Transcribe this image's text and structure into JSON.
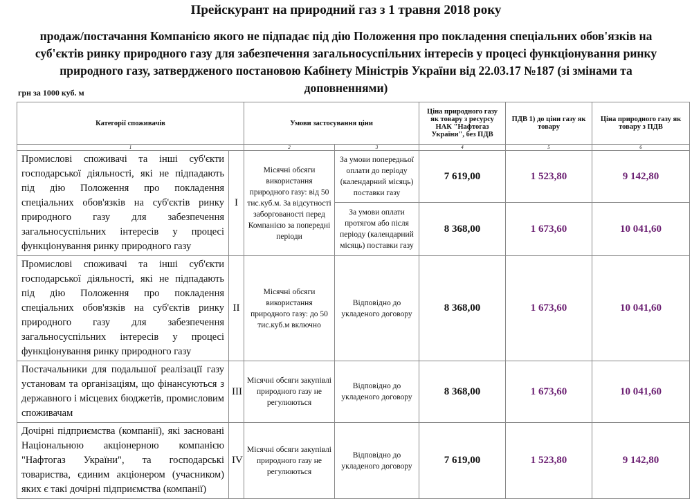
{
  "title": "Прейскурант на природний газ з 1 травня 2018 року",
  "subtitle": "продаж/постачання Компанією якого не підпадає під дію Положення про покладення спеціальних обов'язків на суб'єктів ринку природного газу для забезпечення загальносуспільних інтересів у процесі функціонування ринку природного газу, затвердженого постановою Кабінету Міністрів України від 22.03.17 №187 (зі змінами та доповненнями)",
  "unit": "грн за 1000 куб. м",
  "headers": [
    "Категорії споживачів",
    "Умови застосування ціни",
    "Ціна природного газу як товару з ресурсу НАК \"Нафтогаз України\", без ПДВ",
    "ПДВ 1) до ціни газу як товару",
    "Ціна природного газу як товару з ПДВ"
  ],
  "col_numbers": [
    "1",
    "2",
    "3",
    "4",
    "5",
    "6"
  ],
  "colors": {
    "vat": "#6b1f72"
  },
  "rows": [
    {
      "category": "Промислові споживачі та інші суб'єкти господарської діяльності, які не підпадають під дію Положення про покладення спеціальних обов'язків на суб'єктів ринку природного газу для забезпечення загальносуспільних інтересів у процесі функціонування ринку природного газу",
      "roman": "I",
      "condition": "Місячні обсяги використання природного газу: від 50 тис.куб.м. За відсутності заборгованості перед Компанією за попередні періоди",
      "sub": [
        {
          "terms": "За умови попередньої оплати до періоду (календарний місяць) поставки газу",
          "price": "7 619,00",
          "vat": "1 523,80",
          "total": "9 142,80"
        },
        {
          "terms": "За умови оплати протягом або після періоду (календарний місяць) поставки газу",
          "price": "8 368,00",
          "vat": "1 673,60",
          "total": "10 041,60"
        }
      ]
    },
    {
      "category": "Промислові споживачі та інші суб'єкти господарської діяльності, які не підпадають під дію Положення про покладення спеціальних обов'язків на суб'єктів ринку природного газу для забезпечення загальносуспільних інтересів у процесі функціонування ринку природного газу",
      "roman": "II",
      "condition": "Місячні обсяги використання природного газу: до 50 тис.куб.м включно",
      "terms": "Відповідно до укладеного договору",
      "price": "8 368,00",
      "vat": "1 673,60",
      "total": "10 041,60"
    },
    {
      "category": "Постачальники для подальшої реалізації газу установам та організаціям, що фінансуються з державного і місцевих бюджетів, промисловим споживачам",
      "roman": "III",
      "condition": "Місячні обсяги закупівлі природного газу не регулюються",
      "terms": "Відповідно до укладеного договору",
      "price": "8 368,00",
      "vat": "1 673,60",
      "total": "10 041,60"
    },
    {
      "category": "Дочірні підприємства (компанії), які засновані Національною акціонерною компанією \"Нафтогаз України\", та господарські товариства, єдиним акціонером (учасником) яких є такі дочірні підприємства (компанії)",
      "roman": "IV",
      "condition": "Місячні обсяги закупівлі природного газу не регулюються",
      "terms": "Відповідно до укладеного договору",
      "price": "7 619,00",
      "vat": "1 523,80",
      "total": "9 142,80"
    }
  ]
}
